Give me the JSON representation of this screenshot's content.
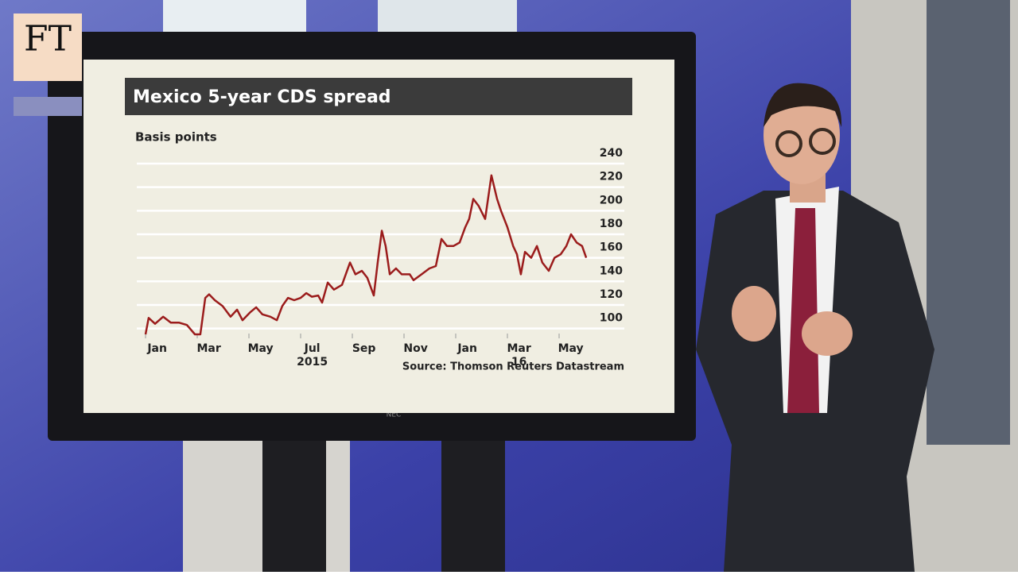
{
  "logo": "FT",
  "monitor_brand": "NEC",
  "chart_data": {
    "type": "line",
    "title": "Mexico 5-year CDS spread",
    "y_axis_label": "Basis points",
    "source": "Source: Thomson Reuters Datastream",
    "x": [
      0,
      0.12,
      0.37,
      0.68,
      0.98,
      1.29,
      1.6,
      1.91,
      2.12,
      2.31,
      2.46,
      2.68,
      2.98,
      3.29,
      3.54,
      3.75,
      4.06,
      4.28,
      4.52,
      4.83,
      5.08,
      5.29,
      5.51,
      5.75,
      6.0,
      6.22,
      6.43,
      6.68,
      6.83,
      7.05,
      7.29,
      7.6,
      7.91,
      8.12,
      8.37,
      8.58,
      8.83,
      8.98,
      9.14,
      9.29,
      9.45,
      9.69,
      9.91,
      10.22,
      10.37,
      10.68,
      10.98,
      11.23,
      11.45,
      11.66,
      11.91,
      12.15,
      12.37,
      12.52,
      12.68,
      12.89,
      13.14,
      13.38,
      13.6,
      13.75,
      14.0,
      14.22,
      14.37,
      14.52,
      14.68,
      14.92,
      15.14,
      15.35,
      15.6,
      15.82,
      16.06,
      16.28,
      16.46,
      16.68,
      16.89,
      17.05
    ],
    "series": [
      {
        "name": "Mexico 5-year CDS",
        "color": "#9b1c1c",
        "values": [
          95,
          109,
          104,
          110,
          105,
          105,
          103,
          95,
          95,
          126,
          129,
          124,
          119,
          110,
          116,
          107,
          114,
          118,
          112,
          110,
          107,
          119,
          126,
          124,
          126,
          130,
          127,
          128,
          122,
          139,
          133,
          137,
          156,
          146,
          149,
          143,
          128,
          156,
          183,
          170,
          146,
          151,
          146,
          146,
          141,
          146,
          151,
          153,
          176,
          170,
          170,
          173,
          186,
          193,
          210,
          204,
          193,
          230,
          210,
          200,
          186,
          170,
          163,
          146,
          165,
          160,
          170,
          156,
          149,
          160,
          163,
          170,
          180,
          173,
          170,
          160
        ]
      }
    ],
    "xlim": [
      0,
      17.4
    ],
    "xticks": [
      {
        "value": 0,
        "label": "Jan"
      },
      {
        "value": 2,
        "label": "Mar"
      },
      {
        "value": 4,
        "label": "May"
      },
      {
        "value": 6,
        "label": "Jul"
      },
      {
        "value": 8,
        "label": "Sep"
      },
      {
        "value": 10,
        "label": "Nov"
      },
      {
        "value": 12,
        "label": "Jan"
      },
      {
        "value": 14,
        "label": "Mar"
      },
      {
        "value": 16,
        "label": "May"
      }
    ],
    "year_labels": [
      {
        "value": 6,
        "label": "2015"
      },
      {
        "value": 14,
        "label": "16"
      }
    ],
    "ylim": [
      93,
      240
    ],
    "yticks": [
      100,
      120,
      140,
      160,
      180,
      200,
      220,
      240
    ],
    "grid": true
  }
}
